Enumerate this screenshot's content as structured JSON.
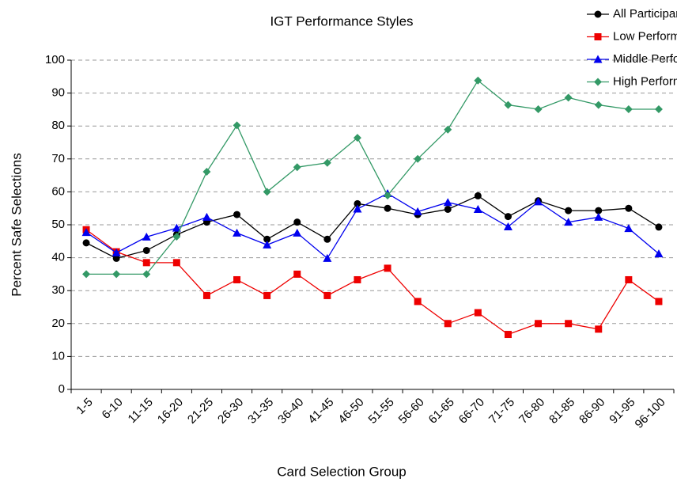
{
  "chart_data": {
    "type": "line",
    "title": "IGT Performance Styles",
    "xlabel": "Card Selection Group",
    "ylabel": "Percent Safe Selections",
    "categories": [
      "1-5",
      "6-10",
      "11-15",
      "16-20",
      "21-25",
      "26-30",
      "31-35",
      "36-40",
      "41-45",
      "46-50",
      "51-55",
      "56-60",
      "61-65",
      "66-70",
      "71-75",
      "76-80",
      "81-85",
      "86-90",
      "91-95",
      "96-100"
    ],
    "series": [
      {
        "name": "All Participants",
        "color": "#000000",
        "marker": "circle",
        "values": [
          44.5,
          39.8,
          42.2,
          47,
          50.8,
          53.1,
          45.6,
          50.8,
          45.6,
          56.4,
          55,
          53.1,
          54.7,
          58.8,
          52.5,
          57.3,
          54.3,
          54.3,
          55,
          49.3
        ]
      },
      {
        "name": "Low Performers",
        "color": "#ee0000",
        "marker": "square",
        "values": [
          48.5,
          41.8,
          38.5,
          38.5,
          28.5,
          33.3,
          28.5,
          35,
          28.5,
          33.3,
          36.8,
          26.7,
          20,
          23.3,
          16.7,
          20,
          20,
          18.3,
          33.3,
          26.7
        ]
      },
      {
        "name": "Middle Performers",
        "color": "#0000ee",
        "marker": "triangle",
        "values": [
          47.7,
          41.5,
          46.3,
          49,
          52.3,
          47.5,
          43.9,
          47.5,
          39.8,
          54.8,
          59.5,
          54,
          56.8,
          54.7,
          49.4,
          57,
          50.8,
          52.3,
          48.9,
          41.2
        ]
      },
      {
        "name": "High Performers",
        "color": "#339966",
        "marker": "diamond",
        "values": [
          35,
          35,
          35,
          46.4,
          66.1,
          80.2,
          60,
          67.5,
          68.8,
          76.4,
          58.9,
          70,
          78.9,
          93.8,
          86.4,
          85.1,
          88.6,
          86.4,
          85.1,
          85.1
        ]
      }
    ],
    "ylim": [
      0,
      100
    ],
    "yticks": [
      0,
      10,
      20,
      30,
      40,
      50,
      60,
      70,
      80,
      90,
      100
    ],
    "grid": true,
    "legend": "top-right"
  }
}
